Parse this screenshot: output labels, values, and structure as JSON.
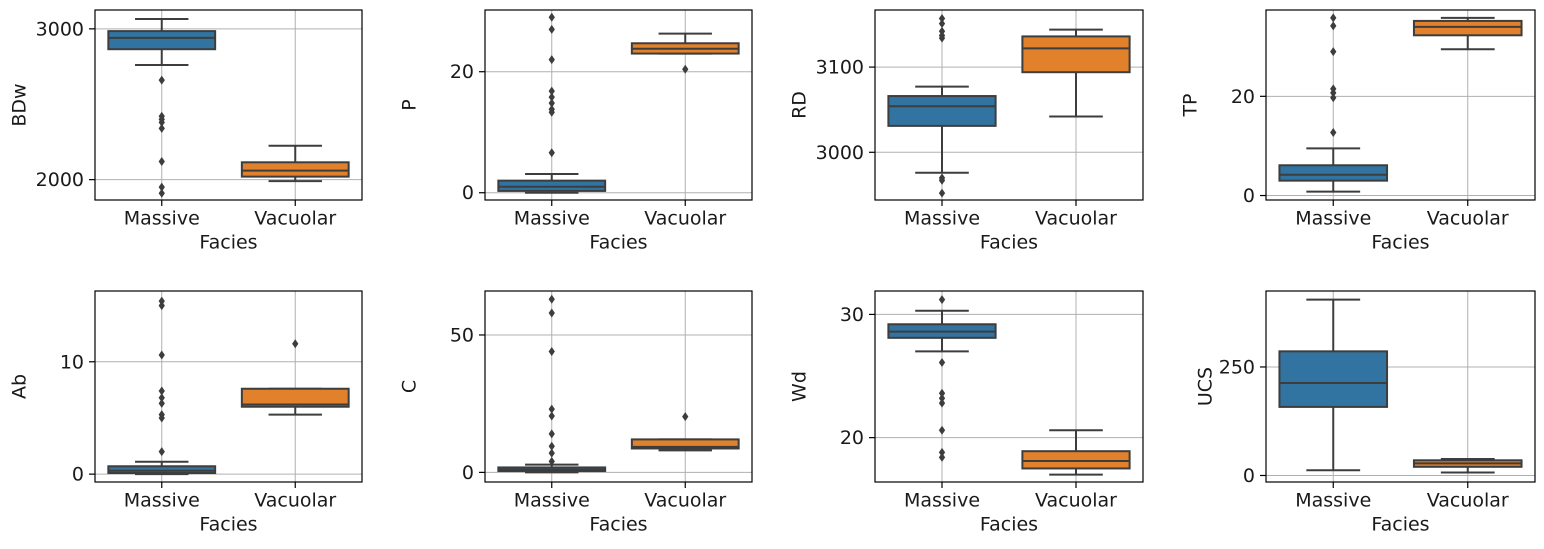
{
  "figure": {
    "layout": "2x4 grid of box plots",
    "colors": {
      "Massive": "#3274a1",
      "Vacuolar": "#e1812c",
      "median_line": "#3d3d3d",
      "grid": "#b0b0b0"
    }
  },
  "chart_data": [
    {
      "type": "box",
      "xlabel": "Facies",
      "ylabel": "BDw",
      "categories": [
        "Massive",
        "Vacuolar"
      ],
      "ylim": [
        1865,
        3125
      ],
      "yticks": [
        2000,
        3000
      ],
      "grid": true,
      "boxes": [
        {
          "category": "Massive",
          "whisker_low": 2760,
          "q1": 2865,
          "median": 2940,
          "q3": 2985,
          "whisker_high": 3065,
          "outliers": [
            2660,
            2420,
            2400,
            2380,
            2340,
            2120,
            1950,
            1910
          ]
        },
        {
          "category": "Vacuolar",
          "whisker_low": 1990,
          "q1": 2020,
          "median": 2060,
          "q3": 2115,
          "whisker_high": 2225,
          "outliers": []
        }
      ]
    },
    {
      "type": "box",
      "xlabel": "Facies",
      "ylabel": "P",
      "categories": [
        "Massive",
        "Vacuolar"
      ],
      "ylim": [
        -1.2,
        30.2
      ],
      "yticks": [
        0,
        20
      ],
      "grid": true,
      "boxes": [
        {
          "category": "Massive",
          "whisker_low": 0,
          "q1": 0.3,
          "median": 1.0,
          "q3": 2.0,
          "whisker_high": 3.1,
          "outliers": [
            29,
            27,
            22,
            16.8,
            15.8,
            14.8,
            13.8,
            13.3,
            6.6
          ]
        },
        {
          "category": "Vacuolar",
          "whisker_low": 23.0,
          "q1": 23.0,
          "median": 23.8,
          "q3": 24.7,
          "whisker_high": 26.3,
          "outliers": [
            20.4
          ]
        }
      ]
    },
    {
      "type": "box",
      "xlabel": "Facies",
      "ylabel": "RD",
      "categories": [
        "Massive",
        "Vacuolar"
      ],
      "ylim": [
        2944,
        3167
      ],
      "yticks": [
        3000,
        3100
      ],
      "grid": true,
      "boxes": [
        {
          "category": "Massive",
          "whisker_low": 2976,
          "q1": 3031,
          "median": 3054,
          "q3": 3066,
          "whisker_high": 3077,
          "outliers": [
            3157,
            3151,
            3142,
            3137,
            3134,
            2970,
            2967,
            2952
          ]
        },
        {
          "category": "Vacuolar",
          "whisker_low": 3042,
          "q1": 3094,
          "median": 3122,
          "q3": 3136,
          "whisker_high": 3144,
          "outliers": []
        }
      ]
    },
    {
      "type": "box",
      "xlabel": "Facies",
      "ylabel": "TP",
      "categories": [
        "Massive",
        "Vacuolar"
      ],
      "ylim": [
        -0.9,
        37.4
      ],
      "yticks": [
        0,
        20
      ],
      "grid": true,
      "boxes": [
        {
          "category": "Massive",
          "whisker_low": 0.8,
          "q1": 3.0,
          "median": 4.2,
          "q3": 6.1,
          "whisker_high": 9.5,
          "outliers": [
            35.8,
            34.2,
            29.0,
            21.5,
            20.7,
            19.7,
            12.7
          ]
        },
        {
          "category": "Vacuolar",
          "whisker_low": 29.5,
          "q1": 32.3,
          "median": 34.0,
          "q3": 35.2,
          "whisker_high": 35.8,
          "outliers": []
        }
      ]
    },
    {
      "type": "box",
      "xlabel": "Facies",
      "ylabel": "Ab",
      "categories": [
        "Massive",
        "Vacuolar"
      ],
      "ylim": [
        -0.7,
        16.3
      ],
      "yticks": [
        0,
        10
      ],
      "grid": true,
      "boxes": [
        {
          "category": "Massive",
          "whisker_low": 0,
          "q1": 0.1,
          "median": 0.3,
          "q3": 0.7,
          "whisker_high": 1.1,
          "outliers": [
            15.4,
            15.0,
            10.6,
            7.4,
            6.8,
            6.3,
            5.3,
            5.0,
            2.0
          ]
        },
        {
          "category": "Vacuolar",
          "whisker_low": 5.3,
          "q1": 6.0,
          "median": 6.2,
          "q3": 7.6,
          "whisker_high": 7.6,
          "outliers": [
            11.6
          ]
        }
      ]
    },
    {
      "type": "box",
      "xlabel": "Facies",
      "ylabel": "C",
      "categories": [
        "Massive",
        "Vacuolar"
      ],
      "ylim": [
        -3.5,
        66
      ],
      "yticks": [
        0,
        50
      ],
      "grid": true,
      "boxes": [
        {
          "category": "Massive",
          "whisker_low": 0,
          "q1": 0.5,
          "median": 1.0,
          "q3": 1.8,
          "whisker_high": 2.8,
          "outliers": [
            63,
            58,
            44,
            23,
            20.5,
            14,
            9.5,
            7,
            4
          ]
        },
        {
          "category": "Vacuolar",
          "whisker_low": 8.0,
          "q1": 8.7,
          "median": 9.3,
          "q3": 12.0,
          "whisker_high": 12.0,
          "outliers": [
            20.3
          ]
        }
      ]
    },
    {
      "type": "box",
      "xlabel": "Facies",
      "ylabel": "Wd",
      "categories": [
        "Massive",
        "Vacuolar"
      ],
      "ylim": [
        16.4,
        31.9
      ],
      "yticks": [
        20,
        30
      ],
      "grid": true,
      "boxes": [
        {
          "category": "Massive",
          "whisker_low": 27.0,
          "q1": 28.1,
          "median": 28.6,
          "q3": 29.2,
          "whisker_high": 30.3,
          "outliers": [
            31.2,
            26.1,
            23.6,
            23.2,
            22.8,
            20.6,
            18.8,
            18.4
          ]
        },
        {
          "category": "Vacuolar",
          "whisker_low": 17.0,
          "q1": 17.5,
          "median": 18.1,
          "q3": 18.9,
          "whisker_high": 20.6,
          "outliers": []
        }
      ]
    },
    {
      "type": "box",
      "xlabel": "Facies",
      "ylabel": "UCS",
      "categories": [
        "Massive",
        "Vacuolar"
      ],
      "ylim": [
        -15,
        425
      ],
      "yticks": [
        0,
        250
      ],
      "grid": true,
      "boxes": [
        {
          "category": "Massive",
          "whisker_low": 12,
          "q1": 158,
          "median": 213,
          "q3": 286,
          "whisker_high": 405,
          "outliers": []
        },
        {
          "category": "Vacuolar",
          "whisker_low": 7,
          "q1": 20,
          "median": 28,
          "q3": 35,
          "whisker_high": 38,
          "outliers": []
        }
      ]
    }
  ]
}
